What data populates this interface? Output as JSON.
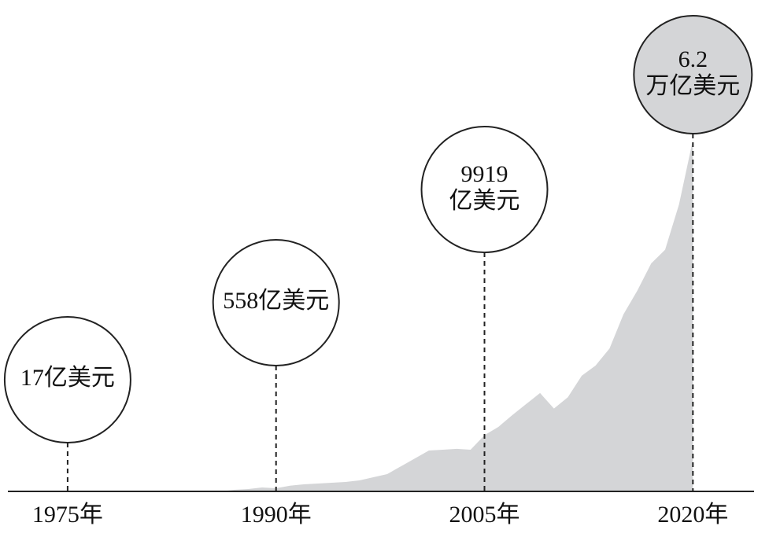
{
  "chart_data": {
    "type": "area",
    "color": "#d4d5d7",
    "x": [
      1986,
      1987,
      1988,
      1989,
      1990,
      1991,
      1992,
      1993,
      1994,
      1995,
      1996,
      1997,
      1998,
      1999,
      2000,
      2001,
      2002,
      2003,
      2004,
      2005,
      2006,
      2007,
      2008,
      2009,
      2010,
      2011,
      2012,
      2013,
      2014,
      2015,
      2016,
      2017,
      2018,
      2019,
      2020
    ],
    "values": [
      0,
      280,
      420,
      700,
      558,
      1000,
      1250,
      1390,
      1530,
      1660,
      1940,
      2500,
      3050,
      4440,
      5830,
      7200,
      7350,
      7500,
      7350,
      9919,
      11370,
      13450,
      15400,
      17340,
      14600,
      16600,
      20400,
      22200,
      25200,
      31200,
      35400,
      40200,
      42600,
      50600,
      62000
    ],
    "xlim": [
      1970.7,
      2024.4
    ],
    "ylim": [
      0,
      70000
    ],
    "xticks": [
      {
        "value": 1975,
        "label": "1975年"
      },
      {
        "value": 1990,
        "label": "1990年"
      },
      {
        "value": 2005,
        "label": "2005年"
      },
      {
        "value": 2020,
        "label": "2020年"
      }
    ],
    "annotations": [
      {
        "x": 1975,
        "value": 17,
        "label": [
          "17亿美元"
        ]
      },
      {
        "x": 1990,
        "value": 558,
        "label": [
          "558亿美元"
        ]
      },
      {
        "x": 2005,
        "value": 9919,
        "label": [
          "9919",
          "亿美元"
        ]
      },
      {
        "x": 2020,
        "value": 62000,
        "label": [
          "6.2",
          "万亿美元"
        ],
        "highlight": true
      }
    ]
  }
}
